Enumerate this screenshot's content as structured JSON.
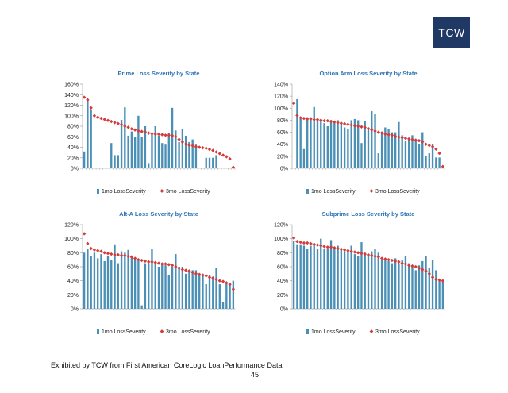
{
  "logo": {
    "text": "TCW"
  },
  "footer": {
    "source": "Exhibited by TCW from First American CoreLogic LoanPerformance Data",
    "page_number": "45"
  },
  "colors": {
    "bar": "#4a8fb5",
    "marker": "#d43c3c",
    "title": "#2e75b6",
    "axis": "#999999"
  },
  "chart_data": [
    {
      "type": "bar",
      "title": "Prime Loss Severity by State",
      "ylim": [
        0,
        1.6
      ],
      "yticks": [
        "0%",
        "20%",
        "40%",
        "60%",
        "80%",
        "100%",
        "120%",
        "140%",
        "160%"
      ],
      "series": [
        {
          "name": "1mo LossSeverity",
          "kind": "bar",
          "values": [
            0.32,
            1.32,
            1.12,
            0.0,
            0.0,
            0.0,
            0.0,
            0.0,
            0.48,
            0.25,
            0.25,
            0.92,
            1.16,
            0.62,
            0.7,
            0.6,
            1.0,
            0.6,
            0.8,
            0.1,
            0.66,
            0.8,
            0.62,
            0.48,
            0.45,
            0.68,
            1.15,
            0.72,
            0.5,
            0.75,
            0.62,
            0.5,
            0.55,
            0.45,
            0.0,
            0.0,
            0.2,
            0.2,
            0.2,
            0.25,
            0.0,
            0.0,
            0.0,
            0.0,
            0.0
          ]
        },
        {
          "name": "3mo LossSeverity",
          "kind": "marker",
          "values": [
            1.35,
            1.3,
            1.15,
            1.0,
            0.97,
            0.95,
            0.93,
            0.91,
            0.89,
            0.87,
            0.85,
            0.83,
            0.8,
            0.78,
            0.75,
            0.73,
            0.71,
            0.7,
            0.69,
            0.67,
            0.66,
            0.65,
            0.65,
            0.64,
            0.63,
            0.63,
            0.62,
            0.6,
            0.55,
            0.5,
            0.46,
            0.44,
            0.43,
            0.41,
            0.4,
            0.39,
            0.38,
            0.36,
            0.34,
            0.31,
            0.28,
            0.25,
            0.22,
            0.18,
            0.02
          ]
        }
      ]
    },
    {
      "type": "bar",
      "title": "Option Arm Loss Severity by State",
      "ylim": [
        0,
        1.4
      ],
      "yticks": [
        "0%",
        "20%",
        "40%",
        "60%",
        "80%",
        "100%",
        "120%",
        "140%"
      ],
      "series": [
        {
          "name": "1mo LossSeverity",
          "kind": "bar",
          "values": [
            0.0,
            1.15,
            0.82,
            0.32,
            0.85,
            0.85,
            1.02,
            0.8,
            0.8,
            0.75,
            0.7,
            0.8,
            0.78,
            0.8,
            0.75,
            0.68,
            0.65,
            0.8,
            0.82,
            0.8,
            0.42,
            0.78,
            0.68,
            0.95,
            0.9,
            0.25,
            0.6,
            0.68,
            0.66,
            0.6,
            0.6,
            0.77,
            0.55,
            0.45,
            0.5,
            0.55,
            0.48,
            0.4,
            0.6,
            0.2,
            0.25,
            0.4,
            0.18,
            0.18,
            0.0
          ]
        },
        {
          "name": "3mo LossSeverity",
          "kind": "marker",
          "values": [
            1.08,
            0.88,
            0.84,
            0.83,
            0.82,
            0.82,
            0.81,
            0.81,
            0.8,
            0.79,
            0.79,
            0.78,
            0.77,
            0.76,
            0.75,
            0.74,
            0.73,
            0.72,
            0.71,
            0.7,
            0.69,
            0.68,
            0.66,
            0.64,
            0.62,
            0.6,
            0.59,
            0.57,
            0.56,
            0.55,
            0.53,
            0.52,
            0.51,
            0.5,
            0.49,
            0.48,
            0.47,
            0.46,
            0.44,
            0.4,
            0.38,
            0.36,
            0.32,
            0.25,
            0.03
          ]
        }
      ]
    },
    {
      "type": "bar",
      "title": "Alt-A Loss Severity by State",
      "ylim": [
        0,
        1.2
      ],
      "yticks": [
        "0%",
        "20%",
        "40%",
        "60%",
        "80%",
        "100%",
        "120%"
      ],
      "series": [
        {
          "name": "1mo LossSeverity",
          "kind": "bar",
          "values": [
            0.8,
            0.85,
            0.75,
            0.8,
            0.72,
            0.78,
            0.68,
            0.75,
            0.7,
            0.92,
            0.65,
            0.82,
            0.8,
            0.84,
            0.75,
            0.72,
            0.7,
            0.05,
            0.65,
            0.65,
            0.85,
            0.65,
            0.6,
            0.65,
            0.62,
            0.48,
            0.6,
            0.78,
            0.6,
            0.6,
            0.5,
            0.55,
            0.55,
            0.55,
            0.5,
            0.5,
            0.35,
            0.48,
            0.45,
            0.58,
            0.35,
            0.1,
            0.38,
            0.35,
            0.4
          ]
        },
        {
          "name": "3mo LossSeverity",
          "kind": "marker",
          "values": [
            1.07,
            0.93,
            0.86,
            0.84,
            0.83,
            0.82,
            0.8,
            0.79,
            0.78,
            0.77,
            0.77,
            0.76,
            0.76,
            0.75,
            0.74,
            0.72,
            0.7,
            0.69,
            0.68,
            0.67,
            0.67,
            0.66,
            0.65,
            0.64,
            0.64,
            0.63,
            0.62,
            0.6,
            0.58,
            0.56,
            0.55,
            0.54,
            0.52,
            0.5,
            0.49,
            0.48,
            0.47,
            0.45,
            0.44,
            0.42,
            0.4,
            0.39,
            0.37,
            0.35,
            0.28
          ]
        }
      ]
    },
    {
      "type": "bar",
      "title": "Subprime Loss Severity by State",
      "ylim": [
        0,
        1.2
      ],
      "yticks": [
        "0%",
        "20%",
        "40%",
        "60%",
        "80%",
        "100%",
        "120%"
      ],
      "series": [
        {
          "name": "1mo LossSeverity",
          "kind": "bar",
          "values": [
            0.97,
            0.92,
            0.92,
            0.9,
            0.85,
            0.9,
            0.92,
            0.85,
            1.0,
            0.85,
            0.85,
            0.98,
            0.85,
            0.9,
            0.85,
            0.82,
            0.82,
            0.9,
            0.78,
            0.75,
            0.95,
            0.8,
            0.75,
            0.82,
            0.85,
            0.8,
            0.7,
            0.72,
            0.68,
            0.65,
            0.72,
            0.65,
            0.7,
            0.75,
            0.65,
            0.6,
            0.55,
            0.62,
            0.68,
            0.75,
            0.58,
            0.7,
            0.55,
            0.4,
            0.4
          ]
        },
        {
          "name": "3mo LossSeverity",
          "kind": "marker",
          "values": [
            1.01,
            0.96,
            0.95,
            0.94,
            0.94,
            0.93,
            0.92,
            0.91,
            0.9,
            0.89,
            0.88,
            0.88,
            0.87,
            0.86,
            0.85,
            0.84,
            0.83,
            0.82,
            0.81,
            0.8,
            0.79,
            0.78,
            0.77,
            0.76,
            0.75,
            0.74,
            0.72,
            0.71,
            0.7,
            0.69,
            0.68,
            0.67,
            0.65,
            0.64,
            0.62,
            0.61,
            0.6,
            0.58,
            0.56,
            0.54,
            0.5,
            0.45,
            0.42,
            0.41,
            0.4
          ]
        }
      ]
    }
  ]
}
